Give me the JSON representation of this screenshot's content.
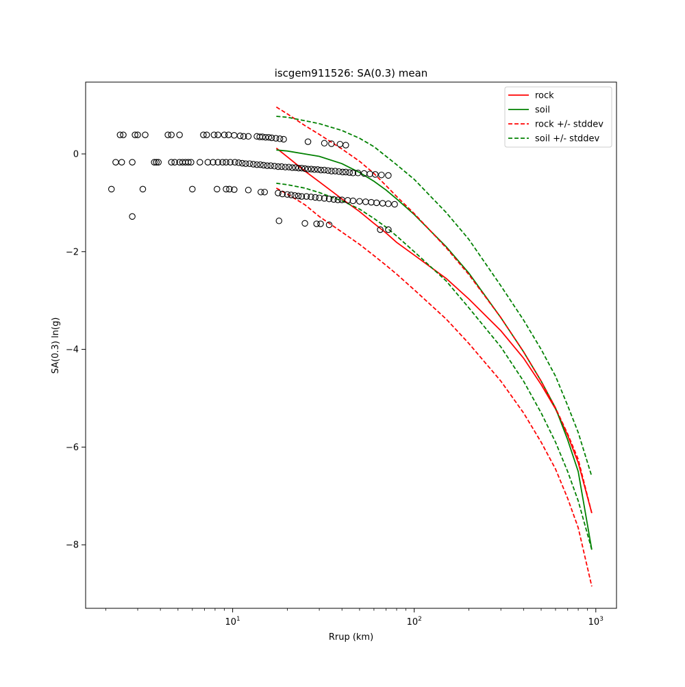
{
  "chart_data": {
    "type": "scatter",
    "title": "iscgem911526: SA(0.3) mean",
    "xlabel": "Rrup (km)",
    "ylabel": "SA(0.3) ln(g)",
    "xscale": "log",
    "xlim": [
      1.55,
      1300
    ],
    "ylim": [
      -9.3,
      1.47
    ],
    "x_ticks": [
      10,
      100,
      1000
    ],
    "x_tick_labels": [
      "10^1",
      "10^2",
      "10^3"
    ],
    "y_ticks": [
      0,
      -2,
      -4,
      -6,
      -8
    ],
    "y_tick_labels": [
      "0",
      "−2",
      "−4",
      "−6",
      "−8"
    ],
    "grid": false,
    "legend_position": "top-right",
    "legend": [
      "rock",
      "soil",
      "rock +/- stddev",
      "soil +/- stddev"
    ],
    "colors": {
      "rock": "#ff0000",
      "soil": "#008000",
      "points": "#000000"
    },
    "series": [
      {
        "name": "rock",
        "style": "solid",
        "color": "#ff0000",
        "points": [
          [
            17.4,
            0.12
          ],
          [
            20,
            -0.06
          ],
          [
            25,
            -0.35
          ],
          [
            30,
            -0.57
          ],
          [
            40,
            -0.92
          ],
          [
            50,
            -1.18
          ],
          [
            60,
            -1.42
          ],
          [
            70,
            -1.62
          ],
          [
            80,
            -1.81
          ],
          [
            100,
            -2.07
          ],
          [
            150,
            -2.55
          ],
          [
            200,
            -2.97
          ],
          [
            300,
            -3.62
          ],
          [
            400,
            -4.18
          ],
          [
            500,
            -4.72
          ],
          [
            600,
            -5.22
          ],
          [
            700,
            -5.76
          ],
          [
            800,
            -6.32
          ],
          [
            950,
            -7.35
          ]
        ]
      },
      {
        "name": "soil",
        "style": "solid",
        "color": "#008000",
        "points": [
          [
            17.4,
            0.08
          ],
          [
            20,
            0.06
          ],
          [
            25,
            0.0
          ],
          [
            30,
            -0.05
          ],
          [
            40,
            -0.2
          ],
          [
            50,
            -0.38
          ],
          [
            60,
            -0.56
          ],
          [
            70,
            -0.74
          ],
          [
            80,
            -0.92
          ],
          [
            100,
            -1.24
          ],
          [
            150,
            -1.9
          ],
          [
            200,
            -2.44
          ],
          [
            300,
            -3.35
          ],
          [
            400,
            -4.05
          ],
          [
            500,
            -4.65
          ],
          [
            600,
            -5.2
          ],
          [
            700,
            -5.85
          ],
          [
            800,
            -6.5
          ],
          [
            950,
            -8.1
          ]
        ]
      },
      {
        "name": "rock +/- stddev (upper)",
        "style": "dashed",
        "color": "#ff0000",
        "points": [
          [
            17.4,
            0.96
          ],
          [
            20,
            0.82
          ],
          [
            25,
            0.58
          ],
          [
            30,
            0.4
          ],
          [
            40,
            0.1
          ],
          [
            50,
            -0.15
          ],
          [
            60,
            -0.4
          ],
          [
            70,
            -0.65
          ],
          [
            80,
            -0.87
          ],
          [
            100,
            -1.22
          ],
          [
            150,
            -1.92
          ],
          [
            200,
            -2.47
          ],
          [
            300,
            -3.35
          ],
          [
            400,
            -4.05
          ],
          [
            500,
            -4.65
          ],
          [
            600,
            -5.2
          ],
          [
            700,
            -5.73
          ],
          [
            800,
            -6.25
          ],
          [
            950,
            -7.35
          ]
        ]
      },
      {
        "name": "rock +/- stddev (lower)",
        "style": "dashed",
        "color": "#ff0000",
        "points": [
          [
            17.4,
            -0.7
          ],
          [
            20,
            -0.82
          ],
          [
            25,
            -1.04
          ],
          [
            30,
            -1.28
          ],
          [
            40,
            -1.6
          ],
          [
            50,
            -1.85
          ],
          [
            60,
            -2.08
          ],
          [
            70,
            -2.28
          ],
          [
            80,
            -2.46
          ],
          [
            100,
            -2.78
          ],
          [
            150,
            -3.38
          ],
          [
            200,
            -3.88
          ],
          [
            300,
            -4.65
          ],
          [
            400,
            -5.3
          ],
          [
            500,
            -5.9
          ],
          [
            600,
            -6.45
          ],
          [
            700,
            -7.05
          ],
          [
            800,
            -7.65
          ],
          [
            950,
            -8.85
          ]
        ]
      },
      {
        "name": "soil +/- stddev (upper)",
        "style": "dashed",
        "color": "#008000",
        "points": [
          [
            17.4,
            0.77
          ],
          [
            20,
            0.75
          ],
          [
            25,
            0.68
          ],
          [
            30,
            0.62
          ],
          [
            40,
            0.48
          ],
          [
            50,
            0.32
          ],
          [
            60,
            0.15
          ],
          [
            70,
            -0.05
          ],
          [
            80,
            -0.22
          ],
          [
            100,
            -0.52
          ],
          [
            150,
            -1.2
          ],
          [
            200,
            -1.75
          ],
          [
            300,
            -2.7
          ],
          [
            400,
            -3.4
          ],
          [
            500,
            -4.0
          ],
          [
            600,
            -4.55
          ],
          [
            700,
            -5.15
          ],
          [
            800,
            -5.7
          ],
          [
            950,
            -6.6
          ]
        ]
      },
      {
        "name": "soil +/- stddev (lower)",
        "style": "dashed",
        "color": "#008000",
        "points": [
          [
            17.4,
            -0.6
          ],
          [
            20,
            -0.63
          ],
          [
            25,
            -0.7
          ],
          [
            30,
            -0.79
          ],
          [
            40,
            -0.96
          ],
          [
            50,
            -1.13
          ],
          [
            60,
            -1.32
          ],
          [
            70,
            -1.5
          ],
          [
            80,
            -1.68
          ],
          [
            100,
            -2.0
          ],
          [
            150,
            -2.6
          ],
          [
            200,
            -3.15
          ],
          [
            300,
            -3.95
          ],
          [
            400,
            -4.65
          ],
          [
            500,
            -5.3
          ],
          [
            600,
            -5.9
          ],
          [
            700,
            -6.5
          ],
          [
            800,
            -7.1
          ],
          [
            950,
            -8.1
          ]
        ]
      }
    ],
    "observations": [
      [
        2.15,
        -0.72
      ],
      [
        2.27,
        -0.17
      ],
      [
        2.45,
        -0.17
      ],
      [
        2.8,
        -0.17
      ],
      [
        3.2,
        -0.72
      ],
      [
        3.7,
        -0.17
      ],
      [
        3.8,
        -0.17
      ],
      [
        3.9,
        -0.17
      ],
      [
        4.6,
        -0.17
      ],
      [
        4.8,
        -0.17
      ],
      [
        5.1,
        -0.17
      ],
      [
        5.3,
        -0.17
      ],
      [
        5.5,
        -0.17
      ],
      [
        5.7,
        -0.17
      ],
      [
        5.9,
        -0.17
      ],
      [
        6.6,
        -0.17
      ],
      [
        7.3,
        -0.17
      ],
      [
        7.8,
        -0.17
      ],
      [
        8.3,
        -0.17
      ],
      [
        8.8,
        -0.17
      ],
      [
        9.2,
        -0.17
      ],
      [
        9.7,
        -0.17
      ],
      [
        10.3,
        -0.17
      ],
      [
        10.8,
        -0.18
      ],
      [
        11.3,
        -0.19
      ],
      [
        11.8,
        -0.2
      ],
      [
        12.4,
        -0.2
      ],
      [
        13.0,
        -0.21
      ],
      [
        13.6,
        -0.22
      ],
      [
        14.2,
        -0.22
      ],
      [
        14.8,
        -0.23
      ],
      [
        15.5,
        -0.24
      ],
      [
        16.2,
        -0.24
      ],
      [
        17.0,
        -0.25
      ],
      [
        17.8,
        -0.26
      ],
      [
        18.6,
        -0.26
      ],
      [
        19.5,
        -0.27
      ],
      [
        20.4,
        -0.27
      ],
      [
        21.3,
        -0.28
      ],
      [
        22.2,
        -0.28
      ],
      [
        23.1,
        -0.29
      ],
      [
        24.0,
        -0.29
      ],
      [
        25.0,
        -0.3
      ],
      [
        26.0,
        -0.31
      ],
      [
        27.1,
        -0.31
      ],
      [
        28.2,
        -0.32
      ],
      [
        29.4,
        -0.32
      ],
      [
        30.6,
        -0.33
      ],
      [
        32.0,
        -0.33
      ],
      [
        33.5,
        -0.34
      ],
      [
        35.0,
        -0.35
      ],
      [
        36.7,
        -0.35
      ],
      [
        38.5,
        -0.36
      ],
      [
        40.3,
        -0.37
      ],
      [
        42.0,
        -0.37
      ],
      [
        44.0,
        -0.38
      ],
      [
        46.0,
        -0.39
      ],
      [
        49.0,
        -0.39
      ],
      [
        53.0,
        -0.4
      ],
      [
        57.0,
        -0.41
      ],
      [
        61.0,
        -0.42
      ],
      [
        66.0,
        -0.43
      ],
      [
        72.0,
        -0.44
      ],
      [
        2.4,
        0.39
      ],
      [
        2.5,
        0.39
      ],
      [
        2.9,
        0.39
      ],
      [
        3.0,
        0.39
      ],
      [
        3.3,
        0.39
      ],
      [
        4.4,
        0.39
      ],
      [
        4.6,
        0.39
      ],
      [
        5.1,
        0.39
      ],
      [
        6.9,
        0.39
      ],
      [
        7.2,
        0.39
      ],
      [
        7.9,
        0.39
      ],
      [
        8.3,
        0.39
      ],
      [
        9.0,
        0.39
      ],
      [
        9.5,
        0.39
      ],
      [
        10.2,
        0.38
      ],
      [
        11.0,
        0.37
      ],
      [
        11.5,
        0.36
      ],
      [
        12.2,
        0.36
      ],
      [
        13.6,
        0.36
      ],
      [
        14.1,
        0.35
      ],
      [
        14.6,
        0.35
      ],
      [
        15.2,
        0.34
      ],
      [
        15.8,
        0.34
      ],
      [
        16.4,
        0.33
      ],
      [
        17.3,
        0.32
      ],
      [
        18.2,
        0.31
      ],
      [
        19.1,
        0.3
      ],
      [
        26.0,
        0.25
      ],
      [
        32.0,
        0.22
      ],
      [
        35.0,
        0.21
      ],
      [
        39.0,
        0.2
      ],
      [
        42.0,
        0.18
      ],
      [
        2.8,
        -1.28
      ],
      [
        6.0,
        -0.72
      ],
      [
        8.2,
        -0.72
      ],
      [
        9.2,
        -0.72
      ],
      [
        9.6,
        -0.72
      ],
      [
        10.2,
        -0.73
      ],
      [
        12.2,
        -0.74
      ],
      [
        14.3,
        -0.78
      ],
      [
        15.0,
        -0.78
      ],
      [
        17.8,
        -0.8
      ],
      [
        18.8,
        -0.82
      ],
      [
        20.0,
        -0.83
      ],
      [
        21.0,
        -0.84
      ],
      [
        22.0,
        -0.85
      ],
      [
        23.0,
        -0.86
      ],
      [
        24.0,
        -0.87
      ],
      [
        25.5,
        -0.87
      ],
      [
        27.0,
        -0.88
      ],
      [
        28.5,
        -0.89
      ],
      [
        30.0,
        -0.9
      ],
      [
        32.0,
        -0.91
      ],
      [
        34.0,
        -0.92
      ],
      [
        36.0,
        -0.93
      ],
      [
        38.0,
        -0.94
      ],
      [
        40.0,
        -0.94
      ],
      [
        43.0,
        -0.95
      ],
      [
        46.0,
        -0.96
      ],
      [
        50.0,
        -0.97
      ],
      [
        54.0,
        -0.98
      ],
      [
        58.0,
        -0.99
      ],
      [
        62.0,
        -1.0
      ],
      [
        67.0,
        -1.01
      ],
      [
        72.0,
        -1.02
      ],
      [
        78.0,
        -1.03
      ],
      [
        18.0,
        -1.37
      ],
      [
        25.0,
        -1.42
      ],
      [
        29.0,
        -1.43
      ],
      [
        30.5,
        -1.43
      ],
      [
        34.0,
        -1.45
      ],
      [
        65.0,
        -1.55
      ],
      [
        72.0,
        -1.55
      ]
    ]
  }
}
